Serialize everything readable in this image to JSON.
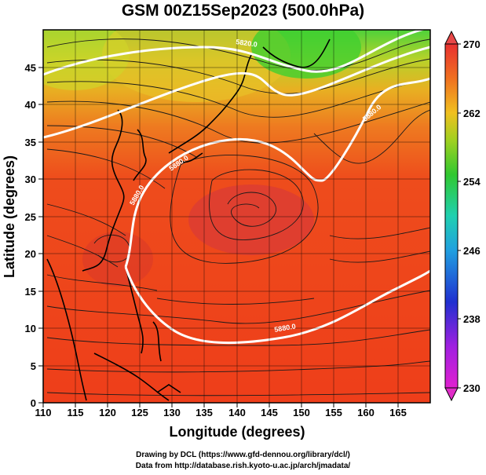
{
  "title": "GSM 00Z15Sep2023 (500.0hPa)",
  "map": {
    "x_axis_label": "Longitude (degrees)",
    "y_axis_label": "Latitude  (degrees)",
    "lon_ticks": [
      "110",
      "115",
      "120",
      "125",
      "130",
      "135",
      "140",
      "145",
      "150",
      "155",
      "160",
      "165"
    ],
    "lat_ticks": [
      "0",
      "5",
      "10",
      "15",
      "20",
      "25",
      "30",
      "35",
      "40",
      "45"
    ],
    "lon_range": [
      110,
      170
    ],
    "lat_range": [
      0,
      50
    ],
    "colorbar_ticks": [
      "230",
      "238",
      "246",
      "254",
      "262",
      "270"
    ],
    "colorbar_range": [
      230,
      270
    ],
    "contour_labels": [
      "5880.0",
      "5880.0",
      "5880.0",
      "5880.0",
      "5820.0"
    ],
    "colors": {
      "warm": "#ee4a1c",
      "hot": "#d8342a",
      "mid": "#f08a20",
      "cool": "#e8c020",
      "cold": "#60d020"
    }
  },
  "credits": {
    "line1": "Drawing by DCL (https://www.gfd-dennou.org/library/dcl/)",
    "line2": "Data from http://database.rish.kyoto-u.ac.jp/arch/jmadata/"
  }
}
